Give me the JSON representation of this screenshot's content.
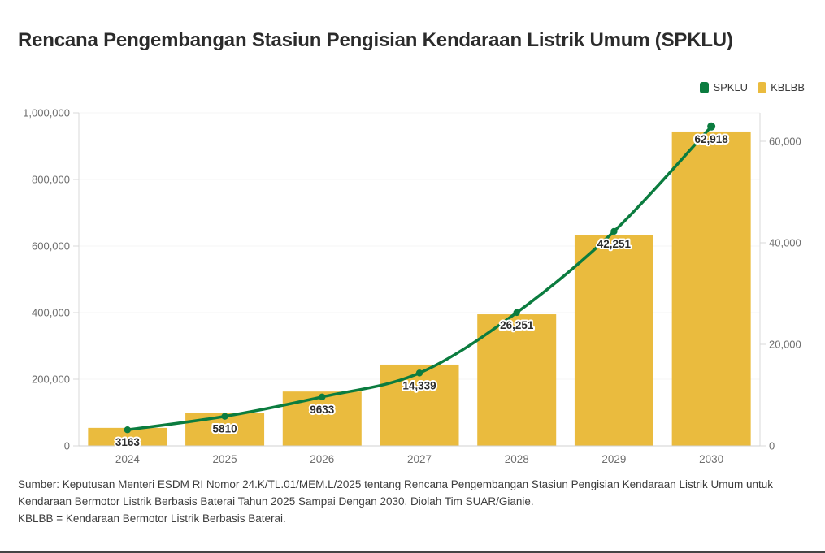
{
  "title": "Rencana Pengembangan Stasiun Pengisian Kendaraan Listrik Umum (SPKLU)",
  "legend": {
    "items": [
      {
        "label": "SPKLU",
        "color": "#0B7C3F"
      },
      {
        "label": "KBLBB",
        "color": "#EABB3E"
      }
    ]
  },
  "footer": {
    "source": "Sumber: Keputusan Menteri ESDM RI Nomor 24.K/TL.01/MEM.L/2025 tentang Rencana Pengembangan Stasiun Pengisian Kendaraan Listrik Umum untuk Kendaraan Bermotor Listrik Berbasis Baterai Tahun 2025 Sampai Dengan 2030. Diolah Tim SUAR/Gianie.",
    "note": "KBLBB = Kendaraan Bermotor Listrik Berbasis Baterai."
  },
  "colors": {
    "bar": "#EABB3E",
    "line": "#0B7C3F",
    "axis_text": "#6e6e6e",
    "axis_line": "#d9d9d9",
    "grid_line": "#f5f5f5",
    "point_label_text": "#2d2d2d",
    "point_label_halo": "#ffffff"
  },
  "chart_data": {
    "type": "combo-bar-line",
    "title": "Rencana Pengembangan Stasiun Pengisian Kendaraan Listrik Umum (SPKLU)",
    "categories": [
      "2024",
      "2025",
      "2026",
      "2027",
      "2028",
      "2029",
      "2030"
    ],
    "series": [
      {
        "name": "SPKLU",
        "type": "line",
        "axis": "right",
        "color": "#0B7C3F",
        "values": [
          3163,
          5810,
          9633,
          14339,
          26251,
          42251,
          62918
        ],
        "labels": [
          "3163",
          "5810",
          "9633",
          "14,339",
          "26,251",
          "42,251",
          "62,918"
        ]
      },
      {
        "name": "KBLBB",
        "type": "bar",
        "axis": "left",
        "color": "#EABB3E",
        "values": [
          54000,
          98000,
          163000,
          244000,
          395000,
          634000,
          944000
        ]
      }
    ],
    "left_axis": {
      "ylim": [
        0,
        1000000
      ],
      "ticks": [
        {
          "v": 0,
          "label": "0"
        },
        {
          "v": 200000,
          "label": "200,000"
        },
        {
          "v": 400000,
          "label": "400,000"
        },
        {
          "v": 600000,
          "label": "600,000"
        },
        {
          "v": 800000,
          "label": "800,000"
        },
        {
          "v": 1000000,
          "label": "1,000,000"
        }
      ]
    },
    "right_axis": {
      "ylim": [
        0,
        65600
      ],
      "ticks": [
        {
          "v": 0,
          "label": "0"
        },
        {
          "v": 20000,
          "label": "20,000"
        },
        {
          "v": 40000,
          "label": "40,000"
        },
        {
          "v": 60000,
          "label": "60,000"
        }
      ]
    },
    "legend_position": "top-right",
    "grid": "horizontal-faint"
  }
}
